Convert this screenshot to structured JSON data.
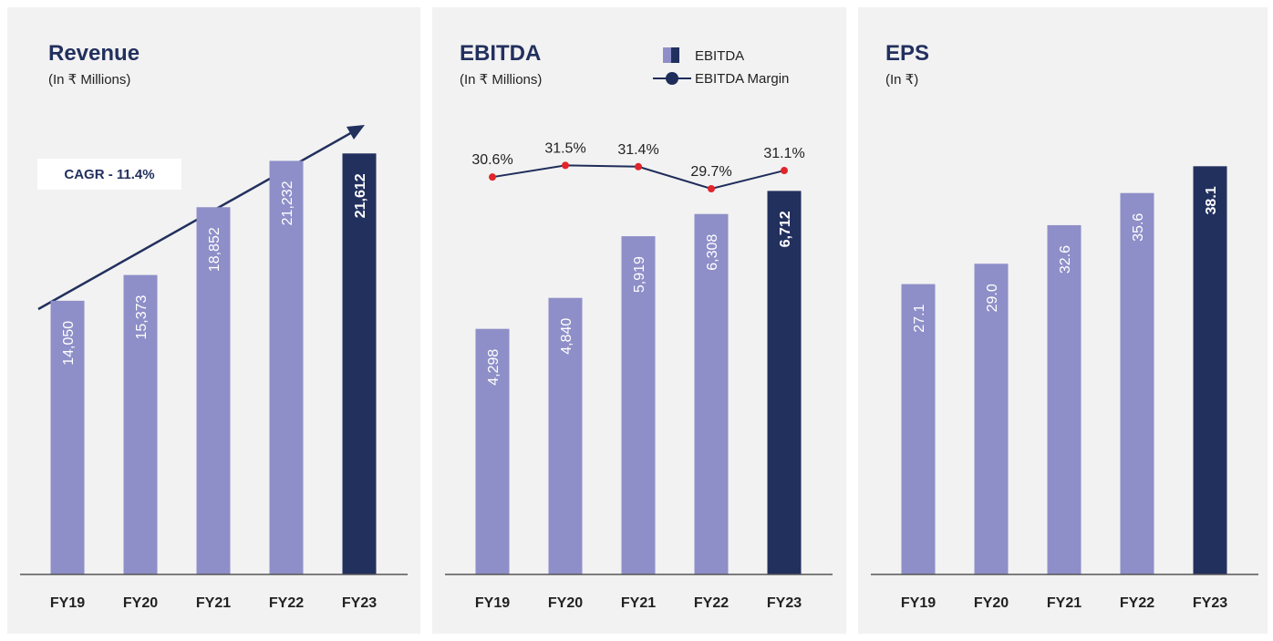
{
  "chart_data": [
    {
      "type": "bar",
      "title": "Revenue",
      "subtitle": "(In ₹ Millions)",
      "annotation": "CAGR - 11.4%",
      "categories": [
        "FY19",
        "FY20",
        "FY21",
        "FY22",
        "FY23"
      ],
      "values": [
        14050,
        15373,
        18852,
        21232,
        21612
      ],
      "value_labels": [
        "14,050",
        "15,373",
        "18,852",
        "21,232",
        "21,612"
      ],
      "colors": [
        "#8e8fc8",
        "#8e8fc8",
        "#8e8fc8",
        "#8e8fc8",
        "#22305e"
      ],
      "ylim": [
        0,
        22000
      ]
    },
    {
      "type": "bar",
      "title": "EBITDA",
      "subtitle": "(In ₹ Millions)",
      "categories": [
        "FY19",
        "FY20",
        "FY21",
        "FY22",
        "FY23"
      ],
      "series": [
        {
          "name": "EBITDA",
          "values": [
            4298,
            4840,
            5919,
            6308,
            6712
          ],
          "value_labels": [
            "4,298",
            "4,840",
            "5,919",
            "6,308",
            "6,712"
          ],
          "colors": [
            "#8e8fc8",
            "#8e8fc8",
            "#8e8fc8",
            "#8e8fc8",
            "#22305e"
          ]
        },
        {
          "name": "EBITDA Margin",
          "axis": "y2",
          "color": "#1f2d5a",
          "marker_color": "#e0262b",
          "values": [
            30.6,
            31.5,
            31.4,
            29.7,
            31.1
          ],
          "value_labels": [
            "30.6%",
            "31.5%",
            "31.4%",
            "29.7%",
            "31.1%"
          ]
        }
      ],
      "ylim": [
        0,
        7500
      ],
      "y2lim": [
        0,
        33
      ]
    },
    {
      "type": "bar",
      "title": "EPS",
      "subtitle": "(In ₹)",
      "categories": [
        "FY19",
        "FY20",
        "FY21",
        "FY22",
        "FY23"
      ],
      "values": [
        27.1,
        29.0,
        32.6,
        35.6,
        38.1
      ],
      "value_labels": [
        "27.1",
        "29.0",
        "32.6",
        "35.6",
        "38.1"
      ],
      "colors": [
        "#8e8fc8",
        "#8e8fc8",
        "#8e8fc8",
        "#8e8fc8",
        "#22305e"
      ],
      "ylim": [
        0,
        40
      ]
    }
  ]
}
